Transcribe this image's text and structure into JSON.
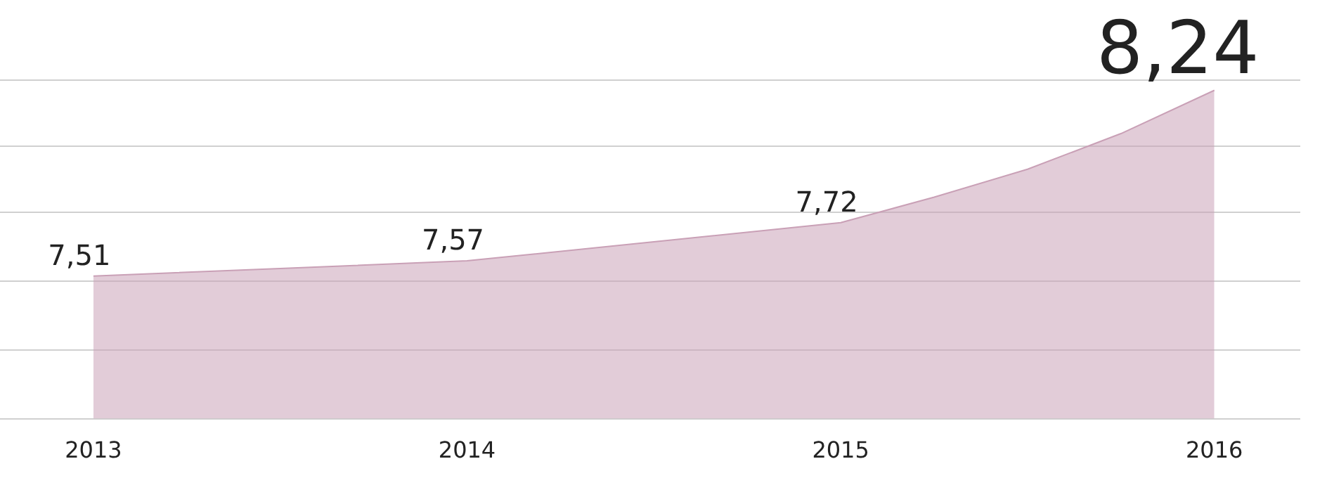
{
  "chart_data": {
    "type": "area",
    "x": [
      2013,
      2013.5,
      2014,
      2014.5,
      2015,
      2015.25,
      2015.5,
      2015.75,
      2016
    ],
    "values": [
      7.51,
      7.54,
      7.57,
      7.645,
      7.72,
      7.82,
      7.93,
      8.07,
      8.24
    ],
    "value_labels": [
      "7,51",
      null,
      "7,57",
      null,
      "7,72",
      null,
      null,
      null,
      "8,24"
    ],
    "color": "#c9a0b6",
    "xlim": [
      2012.75,
      2016.23
    ],
    "xticks": [
      2013,
      2014,
      2015,
      2016
    ],
    "ylim": [
      6.95,
      8.28
    ],
    "yticks": [
      {
        "value": 6.95,
        "label": null
      },
      {
        "value": 7.22,
        "label": null
      },
      {
        "value": 7.49,
        "label": null
      },
      {
        "value": 7.76,
        "label": null
      },
      {
        "value": 8.02,
        "label": null
      },
      {
        "value": 8.28,
        "label": null
      }
    ],
    "grid": "y",
    "tick_labels": "x",
    "legend": false
  }
}
